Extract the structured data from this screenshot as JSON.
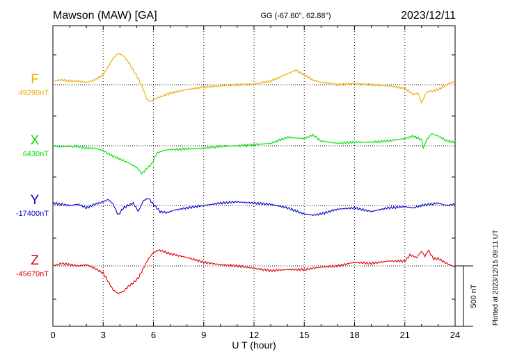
{
  "chart_data": {
    "type": "line",
    "title": "Mawson (MAW)  [GA]",
    "coords": "GG (-67.60°,  62.88°)",
    "date": "2023/12/11",
    "xlabel": "U T (hour)",
    "xlim": [
      0,
      24
    ],
    "x_ticks": [
      "0",
      "3",
      "6",
      "9",
      "12",
      "15",
      "18",
      "21",
      "24"
    ],
    "grid": "vertical dotted at 3h intervals, horizontal dotted baselines",
    "scale_label": "500 nT",
    "scale_nT": 500,
    "plotted_note": "Plotted at 2023/12/15 09:11 UT",
    "series": [
      {
        "name": "F",
        "baseline_label": "49290nT",
        "color": "#f0a800",
        "x": [
          0,
          0.5,
          1,
          1.5,
          2,
          2.5,
          3,
          3.3,
          3.6,
          3.9,
          4.2,
          4.5,
          4.8,
          5.1,
          5.4,
          5.6,
          5.8,
          6.2,
          6.6,
          7,
          8,
          9,
          10,
          11,
          12,
          13,
          14,
          14.5,
          15,
          15.5,
          16,
          17,
          18,
          19,
          20,
          21,
          21.5,
          21.8,
          22,
          22.3,
          22.7,
          23,
          23.5,
          24
        ],
        "values": [
          30,
          40,
          30,
          30,
          20,
          40,
          80,
          150,
          220,
          260,
          240,
          190,
          120,
          50,
          -40,
          -120,
          -140,
          -110,
          -90,
          -70,
          -40,
          -20,
          -10,
          0,
          5,
          30,
          90,
          120,
          80,
          40,
          20,
          0,
          10,
          0,
          -10,
          -30,
          -80,
          -70,
          -150,
          -60,
          -50,
          -40,
          0,
          30
        ]
      },
      {
        "name": "X",
        "baseline_label": "6430nT",
        "color": "#00e000",
        "x": [
          0,
          0.5,
          1,
          1.5,
          2,
          2.5,
          3,
          3.5,
          4,
          4.5,
          5,
          5.3,
          5.6,
          5.9,
          6.2,
          6.6,
          7,
          7.5,
          8,
          9,
          10,
          11,
          12,
          13,
          14,
          15,
          15.5,
          16,
          17,
          18,
          19,
          20,
          21,
          21.5,
          22,
          22.1,
          22.3,
          22.6,
          23,
          23.5,
          24
        ],
        "values": [
          0,
          -10,
          -5,
          -5,
          -20,
          -20,
          -40,
          -80,
          -110,
          -140,
          -180,
          -230,
          -190,
          -150,
          -60,
          -40,
          -30,
          -30,
          -25,
          -20,
          -5,
          0,
          10,
          20,
          70,
          60,
          90,
          40,
          20,
          30,
          30,
          40,
          60,
          80,
          50,
          -20,
          50,
          100,
          80,
          40,
          30
        ]
      },
      {
        "name": "Y",
        "baseline_label": "-17400nT",
        "color": "#0000d0",
        "x": [
          0,
          0.5,
          1,
          1.5,
          2,
          2.5,
          3,
          3.3,
          3.6,
          3.9,
          4.2,
          4.5,
          4.8,
          5.1,
          5.4,
          5.7,
          6,
          6.4,
          6.8,
          7.2,
          8,
          9,
          10,
          11,
          12,
          13,
          14,
          15,
          15.5,
          16,
          17,
          18,
          19,
          20,
          21,
          21.5,
          22,
          22.5,
          23,
          23.5,
          24
        ],
        "values": [
          20,
          10,
          0,
          10,
          -20,
          10,
          30,
          50,
          10,
          -80,
          -20,
          0,
          20,
          -50,
          40,
          60,
          10,
          -50,
          -60,
          -40,
          -20,
          0,
          20,
          30,
          20,
          10,
          -20,
          -70,
          -80,
          -70,
          -30,
          -20,
          -50,
          -20,
          -10,
          -20,
          0,
          10,
          20,
          0,
          10
        ]
      },
      {
        "name": "Z",
        "baseline_label": "-45670nT",
        "color": "#e00000",
        "x": [
          0,
          0.5,
          1,
          1.5,
          2,
          2.5,
          3,
          3.3,
          3.6,
          3.9,
          4.2,
          4.5,
          4.8,
          5.1,
          5.4,
          5.7,
          6,
          6.3,
          6.6,
          7,
          8,
          9,
          10,
          11,
          12,
          13,
          14,
          15,
          16,
          17,
          18,
          19,
          20,
          21,
          21.3,
          21.7,
          22,
          22.2,
          22.4,
          22.7,
          23,
          23.5,
          24
        ],
        "values": [
          0,
          20,
          10,
          0,
          10,
          -20,
          -60,
          -130,
          -200,
          -230,
          -210,
          -170,
          -140,
          -100,
          -20,
          60,
          110,
          130,
          120,
          100,
          70,
          30,
          10,
          0,
          -20,
          -40,
          -30,
          -30,
          -10,
          0,
          30,
          20,
          40,
          40,
          90,
          70,
          120,
          80,
          130,
          60,
          60,
          20,
          -10
        ]
      }
    ]
  }
}
